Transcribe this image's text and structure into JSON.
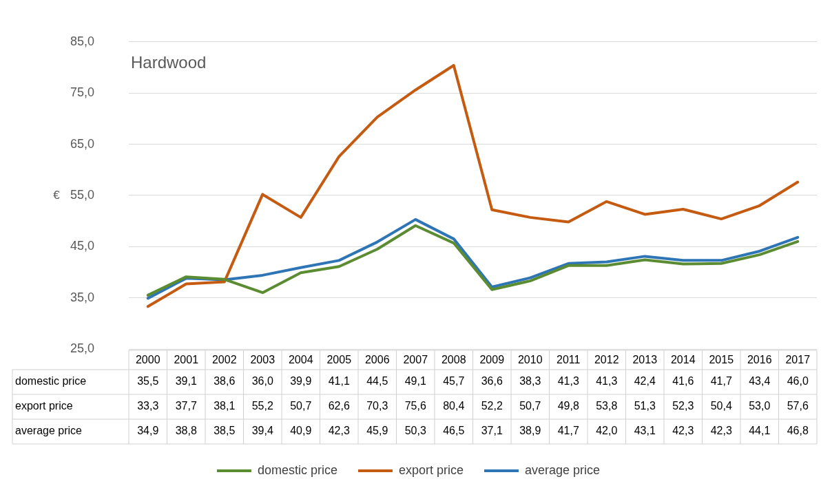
{
  "chart_data": {
    "type": "line",
    "title": "Hardwood",
    "ylabel": "€",
    "categories": [
      "2000",
      "2001",
      "2002",
      "2003",
      "2004",
      "2005",
      "2006",
      "2007",
      "2008",
      "2009",
      "2010",
      "2011",
      "2012",
      "2013",
      "2014",
      "2015",
      "2016",
      "2017"
    ],
    "series": [
      {
        "name": "domestic price",
        "color": "#5b8c32",
        "values": [
          35.5,
          39.1,
          38.6,
          36.0,
          39.9,
          41.1,
          44.5,
          49.1,
          45.7,
          36.6,
          38.3,
          41.3,
          41.3,
          42.4,
          41.6,
          41.7,
          43.4,
          46.0
        ],
        "value_labels": [
          "35,5",
          "39,1",
          "38,6",
          "36,0",
          "39,9",
          "41,1",
          "44,5",
          "49,1",
          "45,7",
          "36,6",
          "38,3",
          "41,3",
          "41,3",
          "42,4",
          "41,6",
          "41,7",
          "43,4",
          "46,0"
        ]
      },
      {
        "name": "export price",
        "color": "#c55a11",
        "values": [
          33.3,
          37.7,
          38.1,
          55.2,
          50.7,
          62.6,
          70.3,
          75.6,
          80.4,
          52.2,
          50.7,
          49.8,
          53.8,
          51.3,
          52.3,
          50.4,
          53.0,
          57.6
        ],
        "value_labels": [
          "33,3",
          "37,7",
          "38,1",
          "55,2",
          "50,7",
          "62,6",
          "70,3",
          "75,6",
          "80,4",
          "52,2",
          "50,7",
          "49,8",
          "53,8",
          "51,3",
          "52,3",
          "50,4",
          "53,0",
          "57,6"
        ]
      },
      {
        "name": "average price",
        "color": "#2e75b6",
        "values": [
          34.9,
          38.8,
          38.5,
          39.4,
          40.9,
          42.3,
          45.9,
          50.3,
          46.5,
          37.1,
          38.9,
          41.7,
          42.0,
          43.1,
          42.3,
          42.3,
          44.1,
          46.8
        ],
        "value_labels": [
          "34,9",
          "38,8",
          "38,5",
          "39,4",
          "40,9",
          "42,3",
          "45,9",
          "50,3",
          "46,5",
          "37,1",
          "38,9",
          "41,7",
          "42,0",
          "43,1",
          "42,3",
          "42,3",
          "44,1",
          "46,8"
        ]
      }
    ],
    "ylim": [
      25,
      85
    ],
    "yticks": [
      {
        "value": 25,
        "label": "25,0"
      },
      {
        "value": 35,
        "label": "35,0"
      },
      {
        "value": 45,
        "label": "45,0"
      },
      {
        "value": 55,
        "label": "55,0"
      },
      {
        "value": 65,
        "label": "65,0"
      },
      {
        "value": 75,
        "label": "75,0"
      },
      {
        "value": 85,
        "label": "85,0"
      }
    ],
    "grid": "y",
    "legend": "bottom",
    "marker": "none",
    "line_style": "solid"
  }
}
